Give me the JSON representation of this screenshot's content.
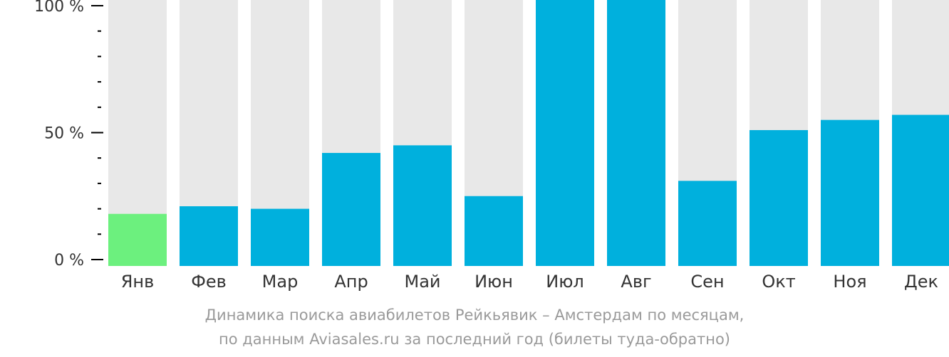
{
  "chart_data": {
    "type": "bar",
    "categories": [
      "Янв",
      "Фев",
      "Мар",
      "Апр",
      "Май",
      "Июн",
      "Июл",
      "Авг",
      "Сен",
      "Окт",
      "Ноя",
      "Дек"
    ],
    "values": [
      18,
      21,
      20,
      42,
      45,
      25,
      103,
      104,
      31,
      51,
      55,
      57
    ],
    "ylim": [
      0,
      100
    ],
    "y_ticks": [
      {
        "value": 0,
        "label": "0 %"
      },
      {
        "value": 50,
        "label": "50 %"
      },
      {
        "value": 100,
        "label": "100 %"
      }
    ],
    "minor_ticks_per_major": 5,
    "highlight_index": 0,
    "colors": {
      "bar": "#00b0dd",
      "highlight": "#6cf07e",
      "background_bar": "#e8e8e8",
      "axis": "#000000",
      "text": "#333333"
    },
    "caption": {
      "line1": "Динамика поиска авиабилетов Рейкьявик – Амстердам по месяцам,",
      "line2": "по данным Aviasales.ru за последний год (билеты туда-обратно)"
    }
  }
}
